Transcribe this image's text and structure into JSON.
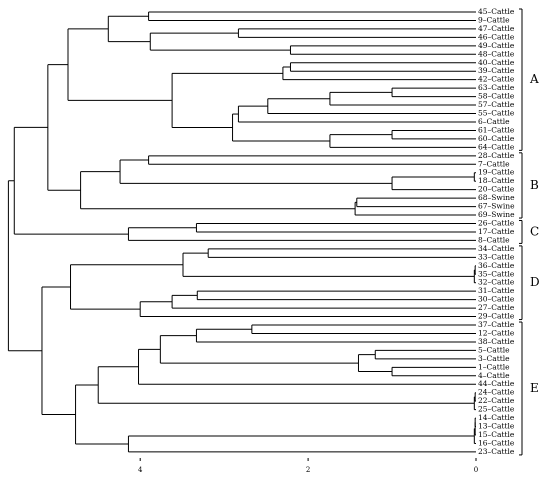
{
  "chart_data": {
    "type": "dendrogram",
    "xlim": [
      5.67,
      0
    ],
    "xticks": [
      4,
      2,
      0
    ],
    "groups": [
      "A",
      "B",
      "C",
      "D",
      "E"
    ],
    "tree": {
      "height": 5.57,
      "children": [
        {
          "height": 5.5,
          "children": [
            {
              "height": 5.1,
              "children": [
                {
                  "height": 4.86,
                  "children": [
                    {
                      "height": 4.38,
                      "children": [
                        {
                          "height": 3.9,
                          "children": [
                            "45–Cattle",
                            "9–Cattle"
                          ]
                        },
                        {
                          "height": 3.88,
                          "children": [
                            {
                              "height": 2.83,
                              "children": [
                                "47–Cattle",
                                "46–Cattle"
                              ]
                            },
                            {
                              "height": 2.21,
                              "children": [
                                "49–Cattle",
                                "48–Cattle"
                              ]
                            }
                          ]
                        }
                      ]
                    },
                    {
                      "height": 3.62,
                      "children": [
                        {
                          "height": 2.3,
                          "children": [
                            {
                              "height": 2.21,
                              "children": [
                                "40–Cattle",
                                "39–Cattle"
                              ]
                            },
                            "42–Cattle"
                          ]
                        },
                        {
                          "height": 2.9,
                          "children": [
                            {
                              "height": 2.83,
                              "children": [
                                {
                                  "height": 2.48,
                                  "children": [
                                    {
                                      "height": 1.74,
                                      "children": [
                                        {
                                          "height": 1.0,
                                          "children": [
                                            "63–Cattle",
                                            "58–Cattle"
                                          ]
                                        },
                                        "57–Cattle"
                                      ]
                                    },
                                    "55–Cattle"
                                  ]
                                },
                                "6–Cattle"
                              ]
                            },
                            {
                              "height": 1.74,
                              "children": [
                                {
                                  "height": 1.0,
                                  "children": [
                                    "61–Cattle",
                                    "60–Cattle"
                                  ]
                                },
                                "64–Cattle"
                              ]
                            }
                          ]
                        }
                      ]
                    }
                  ]
                },
                {
                  "height": 4.71,
                  "children": [
                    {
                      "height": 4.24,
                      "children": [
                        {
                          "height": 3.9,
                          "children": [
                            "28–Cattle",
                            "7–Cattle"
                          ]
                        },
                        {
                          "height": 1.0,
                          "children": [
                            {
                              "height": 0.02,
                              "children": [
                                "19–Cattle",
                                "18–Cattle"
                              ]
                            },
                            "20–Cattle"
                          ]
                        }
                      ]
                    },
                    {
                      "height": 1.44,
                      "children": [
                        {
                          "height": 1.42,
                          "children": [
                            "68–Swine",
                            "67–Swine"
                          ]
                        },
                        "69–Swine"
                      ]
                    }
                  ]
                }
              ]
            },
            {
              "height": 4.14,
              "children": [
                {
                  "height": 3.33,
                  "children": [
                    "26–Cattle",
                    "17–Cattle"
                  ]
                },
                "8–Cattle"
              ]
            }
          ]
        },
        {
          "height": 5.17,
          "children": [
            {
              "height": 4.83,
              "children": [
                {
                  "height": 3.49,
                  "children": [
                    {
                      "height": 3.19,
                      "children": [
                        "34–Cattle",
                        "33–Cattle"
                      ]
                    },
                    {
                      "height": 0.02,
                      "children": [
                        {
                          "height": 0.01,
                          "children": [
                            "36–Cattle",
                            "35–Cattle"
                          ]
                        },
                        "32–Cattle"
                      ]
                    }
                  ]
                },
                {
                  "height": 4.0,
                  "children": [
                    {
                      "height": 3.62,
                      "children": [
                        {
                          "height": 3.32,
                          "children": [
                            "31–Cattle",
                            "30–Cattle"
                          ]
                        },
                        "27–Cattle"
                      ]
                    },
                    "29–Cattle"
                  ]
                }
              ]
            },
            {
              "height": 4.77,
              "children": [
                {
                  "height": 4.5,
                  "children": [
                    {
                      "height": 4.02,
                      "children": [
                        {
                          "height": 3.76,
                          "children": [
                            {
                              "height": 3.33,
                              "children": [
                                {
                                  "height": 2.67,
                                  "children": [
                                    "37–Cattle",
                                    "12–Cattle"
                                  ]
                                },
                                "38–Cattle"
                              ]
                            },
                            {
                              "height": 1.4,
                              "children": [
                                {
                                  "height": 1.2,
                                  "children": [
                                    "5–Cattle",
                                    "3–Cattle"
                                  ]
                                },
                                {
                                  "height": 1.0,
                                  "children": [
                                    "1–Cattle",
                                    "4–Cattle"
                                  ]
                                }
                              ]
                            }
                          ]
                        },
                        "44–Cattle"
                      ]
                    },
                    {
                      "height": 0.02,
                      "children": [
                        {
                          "height": 0.01,
                          "children": [
                            "24–Cattle",
                            "22–Cattle"
                          ]
                        },
                        "25–Cattle"
                      ]
                    }
                  ]
                },
                {
                  "height": 4.14,
                  "children": [
                    {
                      "height": 0.02,
                      "children": [
                        {
                          "height": 0.01,
                          "children": [
                            {
                              "height": 0.01,
                              "children": [
                                "14–Cattle",
                                "13–Cattle"
                              ]
                            },
                            "15–Cattle"
                          ]
                        },
                        "16–Cattle"
                      ]
                    },
                    "23–Cattle"
                  ]
                }
              ]
            }
          ]
        }
      ]
    }
  }
}
